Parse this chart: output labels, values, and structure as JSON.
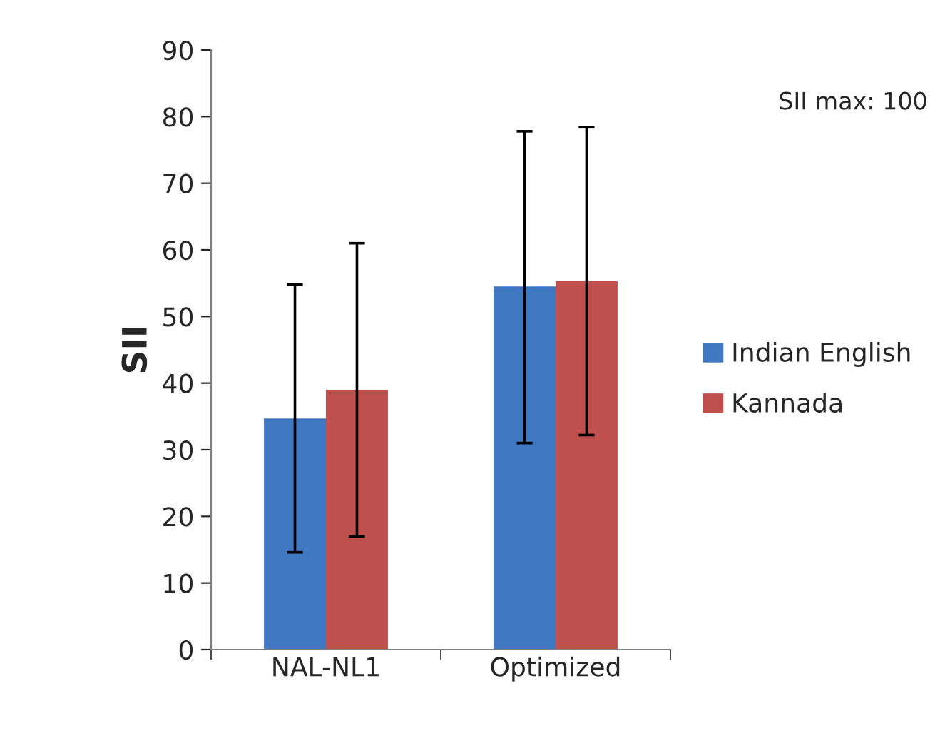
{
  "chart_data": {
    "type": "bar",
    "ylabel": "SII",
    "categories": [
      "NAL-NL1",
      "Optimized"
    ],
    "series": [
      {
        "name": "Indian English",
        "color": "#3f77c0",
        "values": [
          34.7,
          54.5
        ],
        "errors": [
          [
            14.6,
            54.8
          ],
          [
            31,
            77.8
          ]
        ]
      },
      {
        "name": "Kannada",
        "color": "#c0504d",
        "values": [
          39,
          55.3
        ],
        "errors": [
          [
            17,
            61
          ],
          [
            32.2,
            78.4
          ]
        ]
      }
    ],
    "ylim": [
      0,
      90
    ],
    "yticks": [
      0,
      10,
      20,
      30,
      40,
      50,
      60,
      70,
      80,
      90
    ],
    "grid": false,
    "legend": "right",
    "annotations": [
      "SII max: 100"
    ]
  }
}
